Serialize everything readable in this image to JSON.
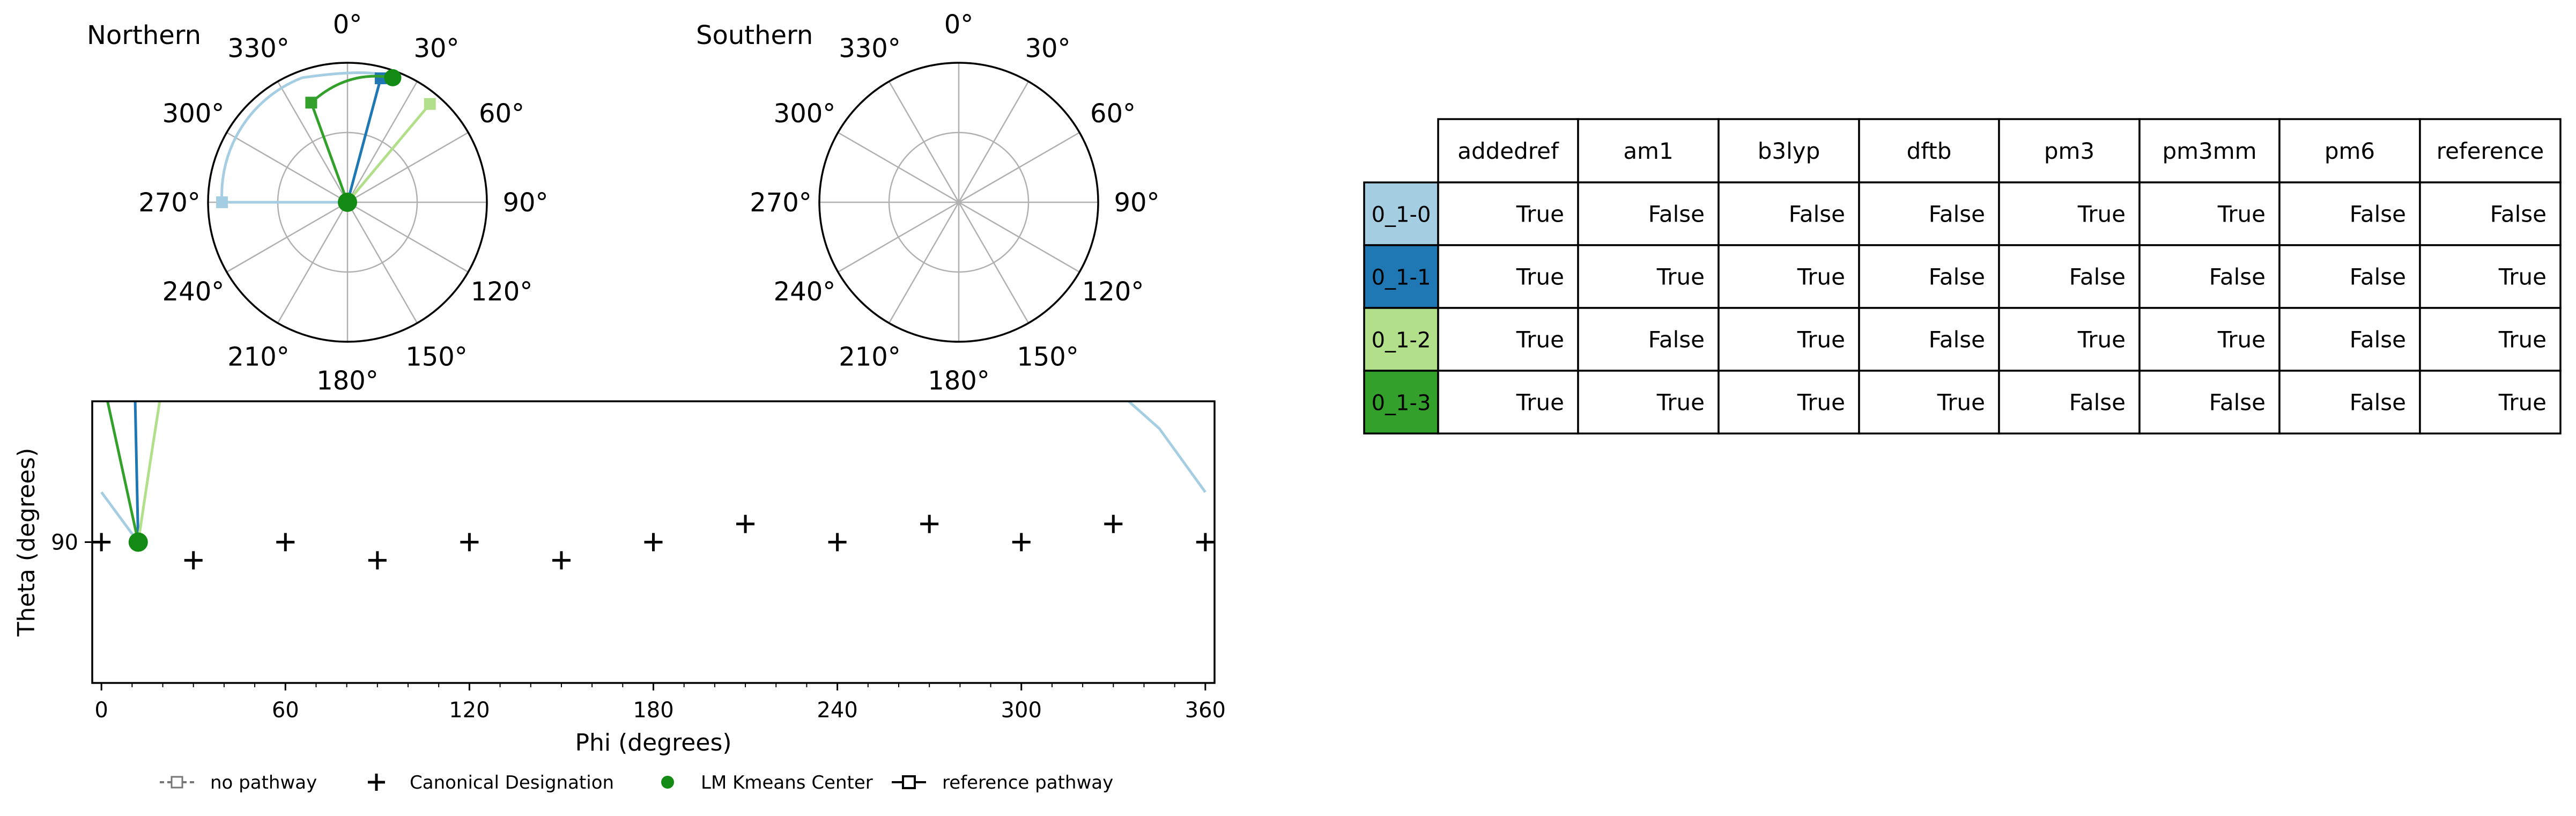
{
  "chart_data": [
    {
      "type": "polar",
      "title": "Northern",
      "angle_ticks": [
        "0°",
        "30°",
        "60°",
        "90°",
        "120°",
        "150°",
        "180°",
        "210°",
        "240°",
        "270°",
        "300°",
        "330°"
      ],
      "grid": true,
      "series": [
        {
          "name": "0_1-0",
          "color": "#a6cee3",
          "angle_deg": 270,
          "radius_frac": 0.9
        },
        {
          "name": "0_1-1",
          "color": "#1f78b4",
          "angle_deg": 15,
          "radius_frac": 0.92
        },
        {
          "name": "0_1-2",
          "color": "#b2df8a",
          "angle_deg": 40,
          "radius_frac": 0.92
        },
        {
          "name": "0_1-3",
          "color": "#33a02c",
          "angle_deg": 340,
          "radius_frac": 0.76
        }
      ],
      "kmeans_center": {
        "angle_deg": 12,
        "radius_frac": 0.0,
        "top_point": {
          "angle_deg": 20,
          "radius_frac": 0.95
        }
      }
    },
    {
      "type": "polar",
      "title": "Southern",
      "angle_ticks": [
        "0°",
        "30°",
        "60°",
        "90°",
        "120°",
        "150°",
        "180°",
        "210°",
        "240°",
        "270°",
        "300°",
        "330°"
      ],
      "grid": true,
      "series": []
    },
    {
      "type": "scatter",
      "xlabel": "Phi (degrees)",
      "ylabel": "Theta (degrees)",
      "xlim": [
        -3,
        363
      ],
      "ylim": [
        59,
        121
      ],
      "x_ticks": [
        0,
        60,
        120,
        180,
        240,
        300,
        360
      ],
      "y_ticks": [
        90
      ],
      "canonical_designation": [
        {
          "x": 0,
          "y": 90
        },
        {
          "x": 30,
          "y": 86
        },
        {
          "x": 60,
          "y": 90
        },
        {
          "x": 90,
          "y": 86
        },
        {
          "x": 120,
          "y": 90
        },
        {
          "x": 150,
          "y": 86
        },
        {
          "x": 180,
          "y": 90
        },
        {
          "x": 210,
          "y": 94
        },
        {
          "x": 240,
          "y": 90
        },
        {
          "x": 270,
          "y": 94
        },
        {
          "x": 300,
          "y": 90
        },
        {
          "x": 330,
          "y": 94
        },
        {
          "x": 360,
          "y": 90
        }
      ],
      "kmeans_center": {
        "x": 12,
        "y": 90
      },
      "series": [
        {
          "name": "0_1-0",
          "color": "#a6cee3",
          "points": [
            [
              12,
              90
            ],
            [
              0,
              101
            ]
          ],
          "wrap_points": [
            [
              335,
              121
            ],
            [
              345,
              115
            ],
            [
              360,
              101
            ]
          ]
        },
        {
          "name": "0_1-1",
          "color": "#1f78b4",
          "points": [
            [
              12,
              90
            ],
            [
              11,
              121
            ]
          ]
        },
        {
          "name": "0_1-2",
          "color": "#b2df8a",
          "points": [
            [
              12,
              90
            ],
            [
              16,
              108
            ],
            [
              19,
              121
            ]
          ]
        },
        {
          "name": "0_1-3",
          "color": "#33a02c",
          "points": [
            [
              12,
              90
            ],
            [
              2,
              121
            ]
          ]
        }
      ],
      "legend": [
        {
          "label": "no pathway",
          "marker": "dashed-square"
        },
        {
          "label": "Canonical Designation",
          "marker": "plus"
        },
        {
          "label": "LM Kmeans Center",
          "marker": "green-dot"
        },
        {
          "label": "reference pathway",
          "marker": "solid-square"
        }
      ],
      "legend_placement": "bottom"
    },
    {
      "type": "table",
      "columns": [
        "addedref",
        "am1",
        "b3lyp",
        "dftb",
        "pm3",
        "pm3mm",
        "pm6",
        "reference"
      ],
      "rows": [
        {
          "label": "0_1-0",
          "color": "#a6cee3",
          "cells": [
            "True",
            "False",
            "False",
            "False",
            "True",
            "True",
            "False",
            "False"
          ]
        },
        {
          "label": "0_1-1",
          "color": "#1f78b4",
          "cells": [
            "True",
            "True",
            "True",
            "False",
            "False",
            "False",
            "False",
            "True"
          ]
        },
        {
          "label": "0_1-2",
          "color": "#b2df8a",
          "cells": [
            "True",
            "False",
            "True",
            "False",
            "True",
            "True",
            "False",
            "True"
          ]
        },
        {
          "label": "0_1-3",
          "color": "#33a02c",
          "cells": [
            "True",
            "True",
            "True",
            "True",
            "False",
            "False",
            "False",
            "True"
          ]
        }
      ]
    }
  ]
}
